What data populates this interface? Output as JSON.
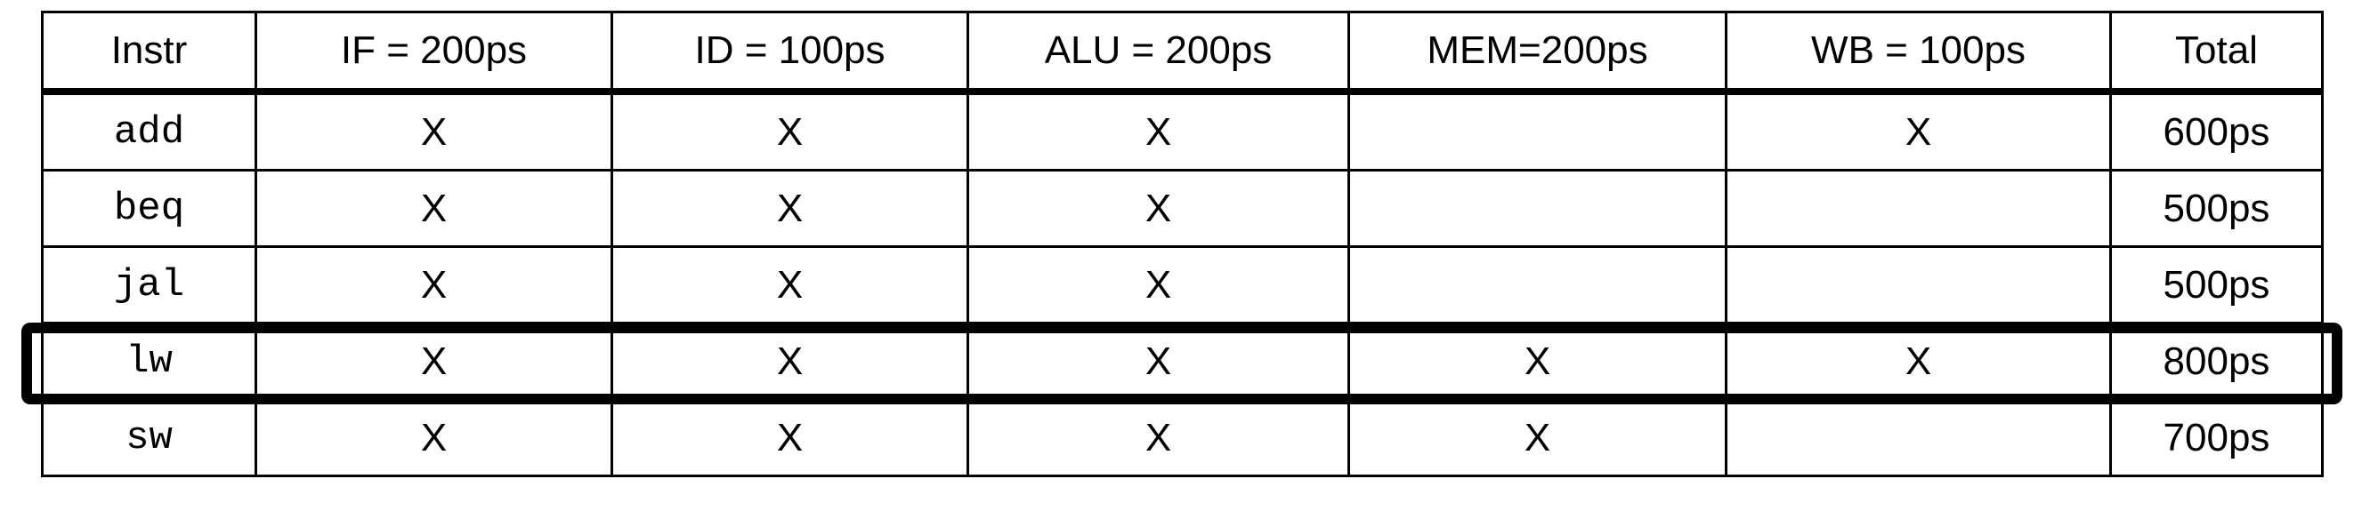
{
  "columns": [
    "Instr",
    "IF = 200ps",
    "ID = 100ps",
    "ALU = 200ps",
    "MEM=200ps",
    "WB = 100ps",
    "Total"
  ],
  "rows": [
    {
      "instr": "add",
      "if": "X",
      "id": "X",
      "alu": "X",
      "mem": "",
      "wb": "X",
      "total": "600ps"
    },
    {
      "instr": "beq",
      "if": "X",
      "id": "X",
      "alu": "X",
      "mem": "",
      "wb": "",
      "total": "500ps"
    },
    {
      "instr": "jal",
      "if": "X",
      "id": "X",
      "alu": "X",
      "mem": "",
      "wb": "",
      "total": "500ps"
    },
    {
      "instr": "lw",
      "if": "X",
      "id": "X",
      "alu": "X",
      "mem": "X",
      "wb": "X",
      "total": "800ps"
    },
    {
      "instr": "sw",
      "if": "X",
      "id": "X",
      "alu": "X",
      "mem": "X",
      "wb": "",
      "total": "700ps"
    }
  ],
  "highlighted_row": "lw"
}
